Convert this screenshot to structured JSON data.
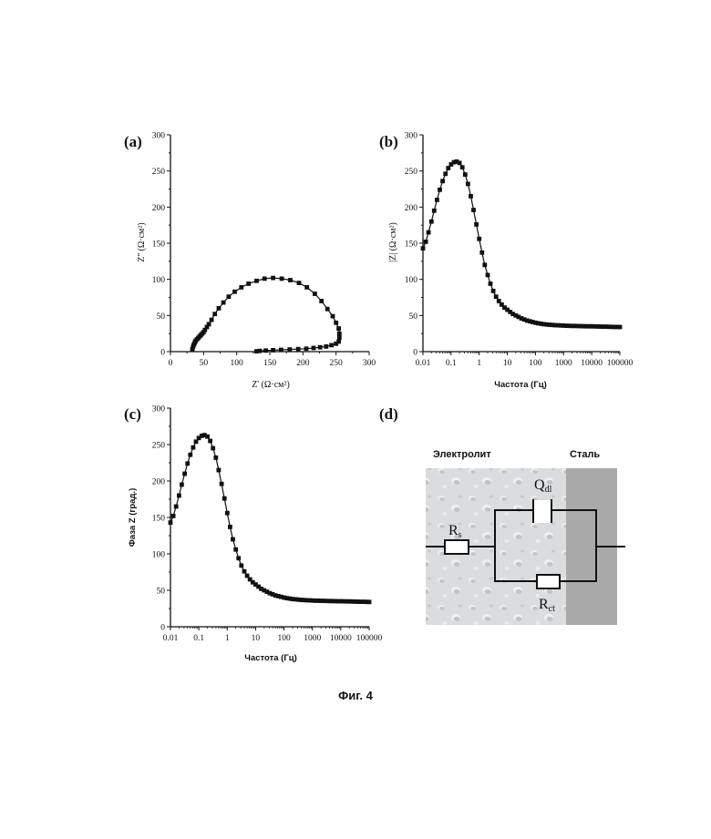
{
  "chart_data": [
    {
      "id": "a",
      "panel_label": "(a)",
      "type": "scatter",
      "xlabel": "Z' (Ω·см²)",
      "ylabel": "Z'' (Ω·см²)",
      "xlim": [
        0,
        300
      ],
      "ylim": [
        0,
        300
      ],
      "xticks": [
        "0",
        "50",
        "100",
        "150",
        "200",
        "250",
        "300"
      ],
      "yticks": [
        "0",
        "50",
        "100",
        "150",
        "200",
        "250",
        "300"
      ],
      "x": [
        33,
        34,
        35,
        36,
        37,
        38,
        40,
        42,
        44,
        46,
        48,
        50,
        52,
        55,
        58,
        62,
        67,
        73,
        80,
        88,
        97,
        107,
        118,
        130,
        142,
        155,
        168,
        181,
        194,
        206,
        218,
        228,
        237,
        245,
        250,
        254,
        255,
        255,
        254,
        250,
        243,
        235,
        226,
        216,
        205,
        193,
        180,
        167,
        155,
        144,
        135,
        130
      ],
      "y": [
        3,
        6,
        9,
        11,
        13,
        15,
        17,
        19,
        21,
        23,
        25,
        27,
        30,
        34,
        38,
        44,
        52,
        60,
        68,
        76,
        83,
        89,
        94,
        98,
        101,
        102,
        101,
        99,
        95,
        89,
        80,
        70,
        59,
        49,
        40,
        32,
        25,
        19,
        14,
        11,
        9,
        7,
        6,
        5,
        4,
        3.5,
        3,
        2.5,
        2,
        1.5,
        1,
        0.5
      ]
    },
    {
      "id": "b",
      "panel_label": "(b)",
      "type": "scatter",
      "xscale": "log",
      "xlabel": "Частота (Гц)",
      "ylabel": "|Z| (Ω·см²)",
      "xlim": [
        0.01,
        100000
      ],
      "ylim": [
        0,
        300
      ],
      "xticks": [
        "0.01",
        "0.1",
        "1",
        "10",
        "100",
        "1000",
        "10000",
        "100000"
      ],
      "yticks": [
        "0",
        "50",
        "100",
        "150",
        "200",
        "250",
        "300"
      ],
      "x": [
        0.01,
        0.0126,
        0.0158,
        0.02,
        0.0251,
        0.0316,
        0.0398,
        0.0501,
        0.0631,
        0.0794,
        0.1,
        0.126,
        0.158,
        0.2,
        0.251,
        0.316,
        0.398,
        0.501,
        0.631,
        0.794,
        1,
        1.26,
        1.58,
        2,
        2.51,
        3.16,
        3.98,
        5.01,
        6.31,
        7.94,
        10,
        12.6,
        15.8,
        20,
        25.1,
        31.6,
        39.8,
        50.1,
        63.1,
        79.4,
        100,
        126,
        158,
        200,
        251,
        316,
        398,
        501,
        631,
        794,
        1000,
        1260,
        1580,
        2000,
        2510,
        3160,
        3980,
        5010,
        6310,
        7940,
        10000,
        12600,
        15800,
        20000,
        25100,
        31600,
        39800,
        50100,
        63100,
        79400,
        100000
      ],
      "y": [
        143,
        152,
        165,
        180,
        195,
        210,
        224,
        236,
        246,
        254,
        259,
        262,
        263,
        261,
        255,
        245,
        232,
        215,
        196,
        176,
        156,
        137,
        120,
        106,
        94,
        84,
        76,
        70,
        65,
        61,
        58,
        55,
        52,
        50,
        48,
        46,
        44.5,
        43,
        42,
        41,
        40,
        39.2,
        38.6,
        38,
        37.6,
        37.2,
        36.9,
        36.6,
        36.4,
        36.2,
        36,
        35.8,
        35.7,
        35.6,
        35.5,
        35.4,
        35.3,
        35.2,
        35.1,
        35,
        35,
        34.9,
        34.8,
        34.7,
        34.6,
        34.5,
        34.4,
        34.3,
        34.2,
        34.1,
        34
      ]
    },
    {
      "id": "c",
      "panel_label": "(c)",
      "type": "scatter",
      "xscale": "log",
      "xlabel": "Частота (Гц)",
      "ylabel": "Фаза Z (град.)",
      "xlim": [
        0.01,
        100000
      ],
      "ylim": [
        0,
        300
      ],
      "xticks": [
        "0.01",
        "0.1",
        "1",
        "10",
        "100",
        "1000",
        "10000",
        "100000"
      ],
      "yticks": [
        "0",
        "50",
        "100",
        "150",
        "200",
        "250",
        "300"
      ],
      "x": [
        0.01,
        0.0126,
        0.0158,
        0.02,
        0.0251,
        0.0316,
        0.0398,
        0.0501,
        0.0631,
        0.0794,
        0.1,
        0.126,
        0.158,
        0.2,
        0.251,
        0.316,
        0.398,
        0.501,
        0.631,
        0.794,
        1,
        1.26,
        1.58,
        2,
        2.51,
        3.16,
        3.98,
        5.01,
        6.31,
        7.94,
        10,
        12.6,
        15.8,
        20,
        25.1,
        31.6,
        39.8,
        50.1,
        63.1,
        79.4,
        100,
        126,
        158,
        200,
        251,
        316,
        398,
        501,
        631,
        794,
        1000,
        1260,
        1580,
        2000,
        2510,
        3160,
        3980,
        5010,
        6310,
        7940,
        10000,
        12600,
        15800,
        20000,
        25100,
        31600,
        39800,
        50100,
        63100,
        79400,
        100000
      ],
      "y": [
        143,
        152,
        165,
        180,
        195,
        210,
        224,
        236,
        246,
        254,
        259,
        262,
        263,
        261,
        255,
        245,
        232,
        215,
        196,
        176,
        156,
        137,
        120,
        106,
        94,
        84,
        76,
        70,
        65,
        61,
        58,
        55,
        52,
        50,
        48,
        46,
        44.5,
        43,
        42,
        41,
        40,
        39.2,
        38.6,
        38,
        37.6,
        37.2,
        36.9,
        36.6,
        36.4,
        36.2,
        36,
        35.8,
        35.7,
        35.6,
        35.5,
        35.4,
        35.3,
        35.2,
        35.1,
        35,
        35,
        34.9,
        34.8,
        34.7,
        34.6,
        34.5,
        34.4,
        34.3,
        34.2,
        34.1,
        34
      ]
    }
  ],
  "diagram": {
    "panel_label": "(d)",
    "electrolyte_label": "Электролит",
    "steel_label": "Сталь",
    "rs": {
      "main": "R",
      "sub": "s"
    },
    "qdl": {
      "main": "Q",
      "sub": "dl"
    },
    "rct": {
      "main": "R",
      "sub": "ct"
    }
  },
  "colors": {
    "electrolyte": "#d8dadb",
    "steel": "#a9a9a9",
    "ink": "#111111"
  },
  "caption": "Фиг. 4"
}
